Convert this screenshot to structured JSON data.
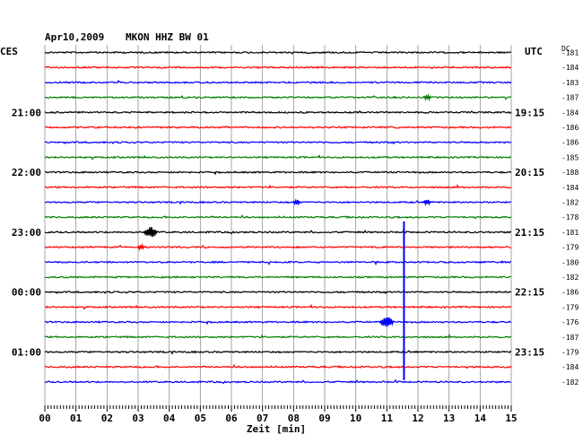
{
  "header": {
    "date": "Apr10,2009",
    "station": "MKON HHZ BW 01",
    "left_zone": "CES",
    "right_zone": "UTC",
    "dc_label": "DC"
  },
  "chart_data": {
    "type": "line",
    "xlabel": "Zeit [min]",
    "xlim": [
      0,
      15
    ],
    "x_ticks": [
      "00",
      "01",
      "02",
      "03",
      "04",
      "05",
      "06",
      "07",
      "08",
      "09",
      "10",
      "11",
      "12",
      "13",
      "14",
      "15"
    ],
    "trace_count": 23,
    "trace_colors": [
      "#000000",
      "#ff0000",
      "#0000ff",
      "#008000"
    ],
    "left_time_labels": [
      {
        "trace": 4,
        "label": "21:00"
      },
      {
        "trace": 8,
        "label": "22:00"
      },
      {
        "trace": 12,
        "label": "23:00"
      },
      {
        "trace": 16,
        "label": "00:00"
      },
      {
        "trace": 20,
        "label": "01:00"
      }
    ],
    "right_time_labels": [
      {
        "trace": 4,
        "label": "19:15"
      },
      {
        "trace": 8,
        "label": "20:15"
      },
      {
        "trace": 12,
        "label": "21:15"
      },
      {
        "trace": 16,
        "label": "22:15"
      },
      {
        "trace": 20,
        "label": "23:15"
      }
    ],
    "dc_offsets": [
      "-181",
      "-184",
      "-183",
      "-187",
      "-184",
      "-186",
      "-186",
      "-185",
      "-188",
      "-184",
      "-182",
      "-178",
      "-181",
      "-179",
      "-180",
      "-182",
      "-186",
      "-179",
      "-176",
      "-187",
      "-179",
      "-184",
      "-182"
    ],
    "events": [
      {
        "trace": 13,
        "minute": 11.55,
        "amplitude": "large",
        "note": "tall spike crossing traces 13-22"
      },
      {
        "trace": 12,
        "minute": 3.4,
        "amplitude": "medium"
      },
      {
        "trace": 13,
        "minute": 3.1,
        "amplitude": "small"
      },
      {
        "trace": 10,
        "minute": 8.1,
        "amplitude": "small"
      },
      {
        "trace": 10,
        "minute": 12.3,
        "amplitude": "small"
      },
      {
        "trace": 18,
        "minute": 11.0,
        "amplitude": "medium"
      },
      {
        "trace": 3,
        "minute": 12.3,
        "amplitude": "small"
      }
    ]
  }
}
